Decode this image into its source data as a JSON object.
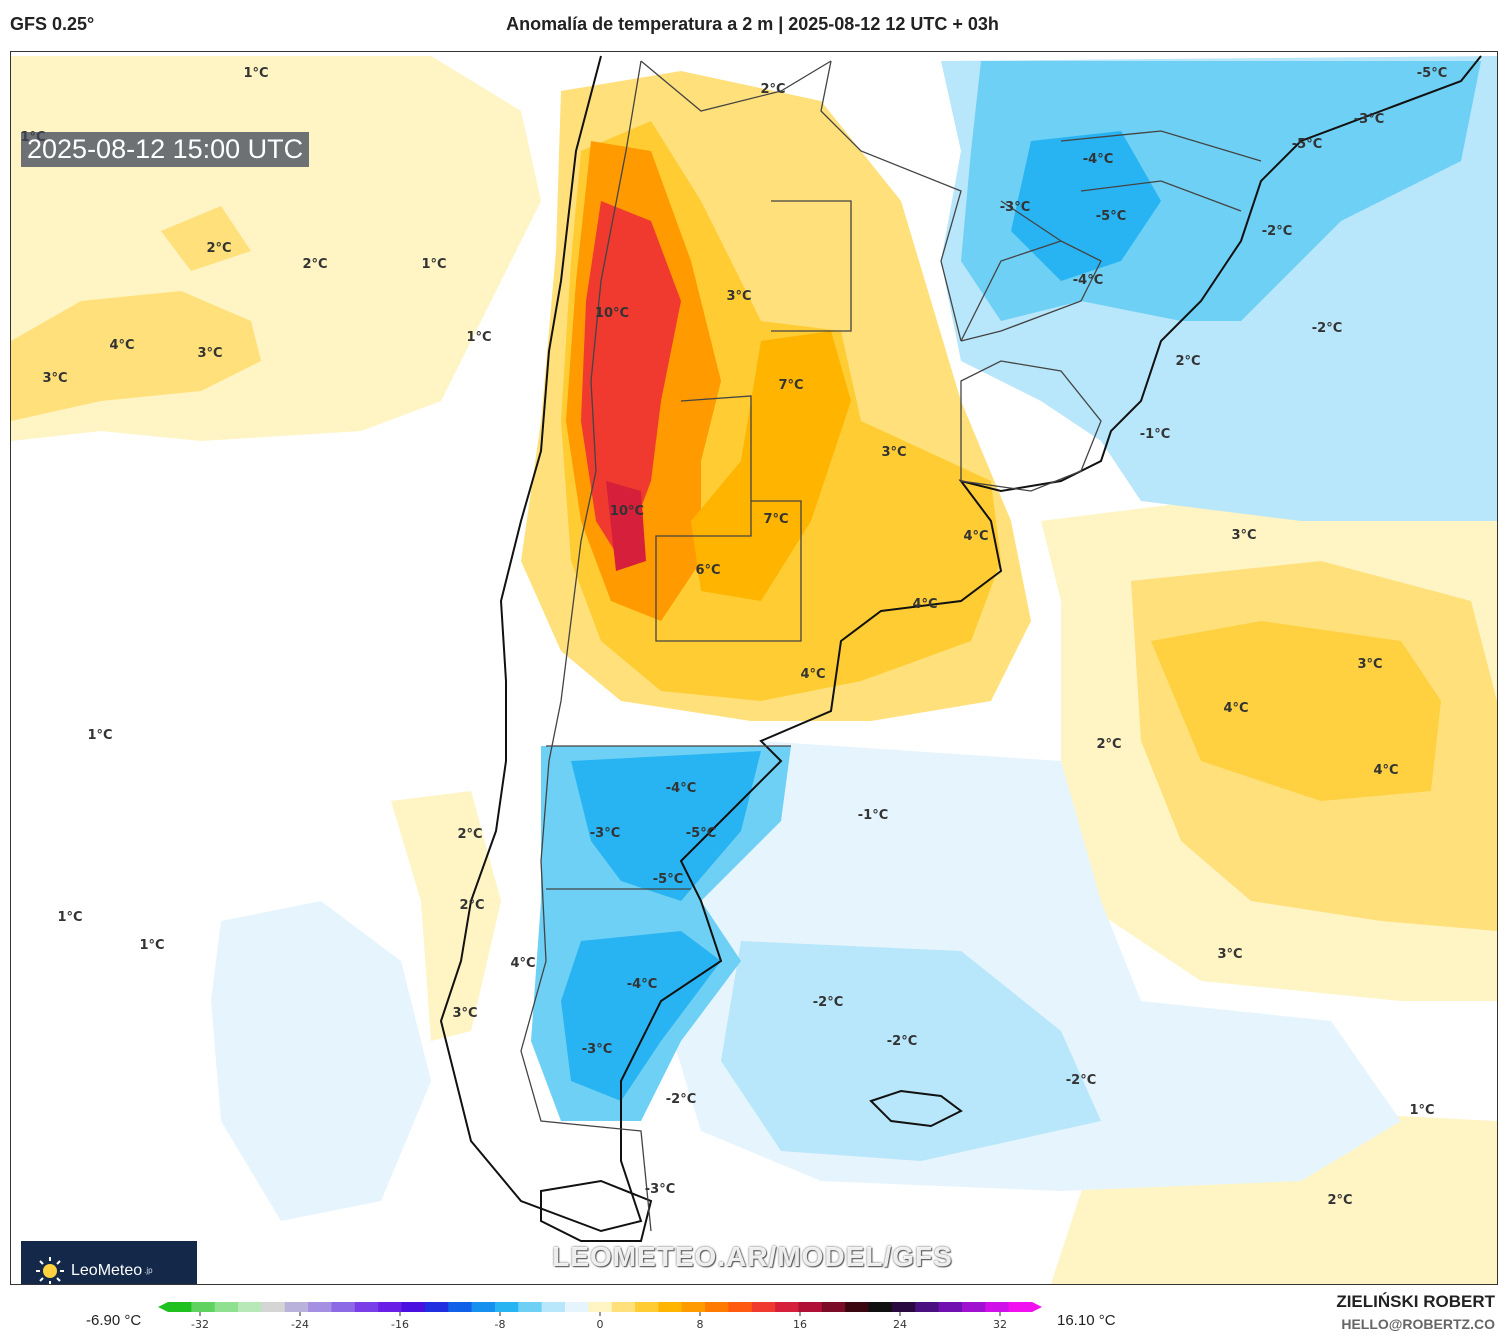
{
  "header": {
    "model": "GFS 0.25°",
    "title": "Anomalía de temperatura a 2 m | 2025-08-12 12 UTC + 03h"
  },
  "map": {
    "valid_time": "2025-08-12 15:00 UTC",
    "watermark_url": "LEOMETEO.AR/MODEL/GFS",
    "logo_text": "LeoMeteo",
    "logo_suffix": ".jp",
    "contour_labels": [
      "1°C",
      "1°C",
      "2°C",
      "2°C",
      "1°C",
      "1°C",
      "3°C",
      "4°C",
      "3°C",
      "2°C",
      "10°C",
      "3°C",
      "7°C",
      "10°C",
      "7°C",
      "6°C",
      "3°C",
      "4°C",
      "4°C",
      "4°C",
      "-4°C",
      "-3°C",
      "-5°C",
      "-5°C",
      "-3°C",
      "-4°C",
      "-5°C",
      "-2°C",
      "-2°C",
      "-1°C",
      "2°C",
      "3°C",
      "4°C",
      "3°C",
      "4°C",
      "2°C",
      "-4°C",
      "-5°C",
      "-3°C",
      "-5°C",
      "-1°C",
      "2°C",
      "1°C",
      "1°C",
      "1°C",
      "2°C",
      "4°C",
      "-4°C",
      "3°C",
      "-3°C",
      "-2°C",
      "-2°C",
      "-2°C",
      "-2°C",
      "-3°C",
      "3°C",
      "1°C",
      "2°C"
    ]
  },
  "colorbar": {
    "min_label": "-6.90 °C",
    "max_label": "16.10 °C",
    "ticks": [
      "-32",
      "-24",
      "-16",
      "-8",
      "0",
      "8",
      "16",
      "24",
      "32"
    ],
    "colors": [
      "#1fc11f",
      "#5fd25f",
      "#8fe08f",
      "#b8e8b8",
      "#d5d5d5",
      "#b9b3dc",
      "#a58fe2",
      "#8c6ae6",
      "#7a3ee8",
      "#6a1fe6",
      "#4a10e0",
      "#2030e0",
      "#1060e8",
      "#1590ee",
      "#28b4f2",
      "#6dd0f4",
      "#b8e6fa",
      "#e6f5fd",
      "#fff4c4",
      "#ffe07a",
      "#ffcc33",
      "#ffb400",
      "#ff9a00",
      "#ff7a00",
      "#ff5a10",
      "#f03a30",
      "#d61f3a",
      "#b01036",
      "#7a0c28",
      "#3a0610",
      "#101010",
      "#2a0840",
      "#4a1080",
      "#7010b0",
      "#a010d0",
      "#d010e8",
      "#f010f0"
    ]
  },
  "credit": {
    "name": "ZIELIŃSKI ROBERT",
    "email": "HELLO@ROBERTZ.CO"
  }
}
